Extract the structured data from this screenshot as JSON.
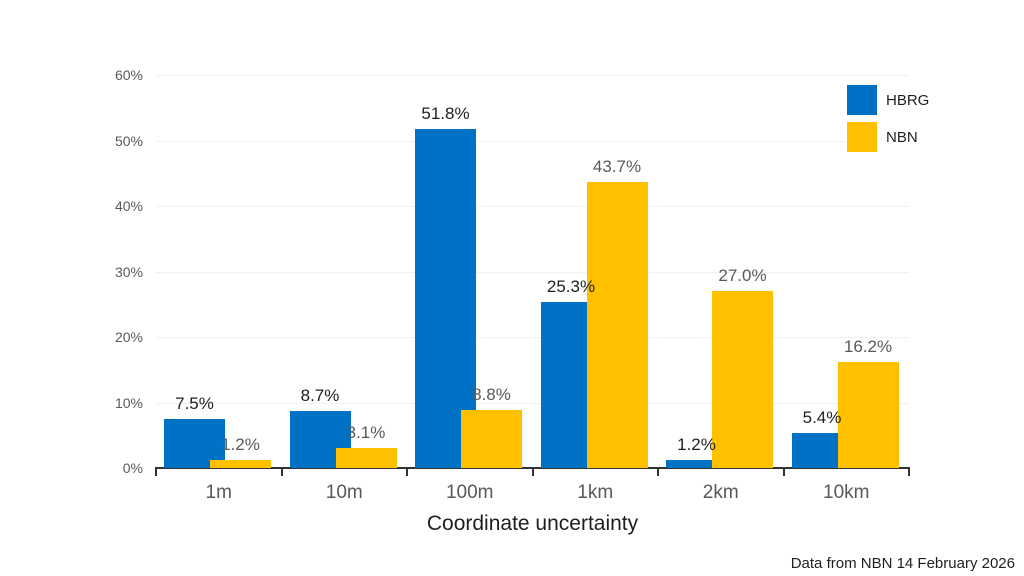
{
  "chart_data": {
    "type": "bar",
    "title": "",
    "xlabel": "Coordinate uncertainty",
    "ylabel": "",
    "categories": [
      "1m",
      "10m",
      "100m",
      "1km",
      "2km",
      "10km"
    ],
    "series": [
      {
        "name": "HBRG",
        "color": "#0072C6",
        "label_color": "#1f1f1f",
        "values": [
          7.5,
          8.7,
          51.8,
          25.3,
          1.2,
          5.4
        ]
      },
      {
        "name": "NBN",
        "color": "#FFC000",
        "label_color": "#595959",
        "values": [
          1.2,
          3.1,
          8.8,
          43.7,
          27.0,
          16.2
        ]
      }
    ],
    "value_labels": [
      [
        "7.5%",
        "8.7%",
        "51.8%",
        "25.3%",
        "1.2%",
        "5.4%"
      ],
      [
        "1.2%",
        "3.1%",
        "8.8%",
        "43.7%",
        "27.0%",
        "16.2%"
      ]
    ],
    "ylim": [
      0,
      60
    ],
    "ytick_step": 10,
    "ytick_labels": [
      "0%",
      "10%",
      "20%",
      "30%",
      "40%",
      "50%",
      "60%"
    ],
    "grid": true,
    "legend_position": "top-right"
  },
  "footer": {
    "note": "Data from NBN 14 February 2026"
  },
  "colors": {
    "background": "#ffffff",
    "axis": "#333333",
    "gridline": "#f0f0f0",
    "tick_text": "#595959"
  }
}
